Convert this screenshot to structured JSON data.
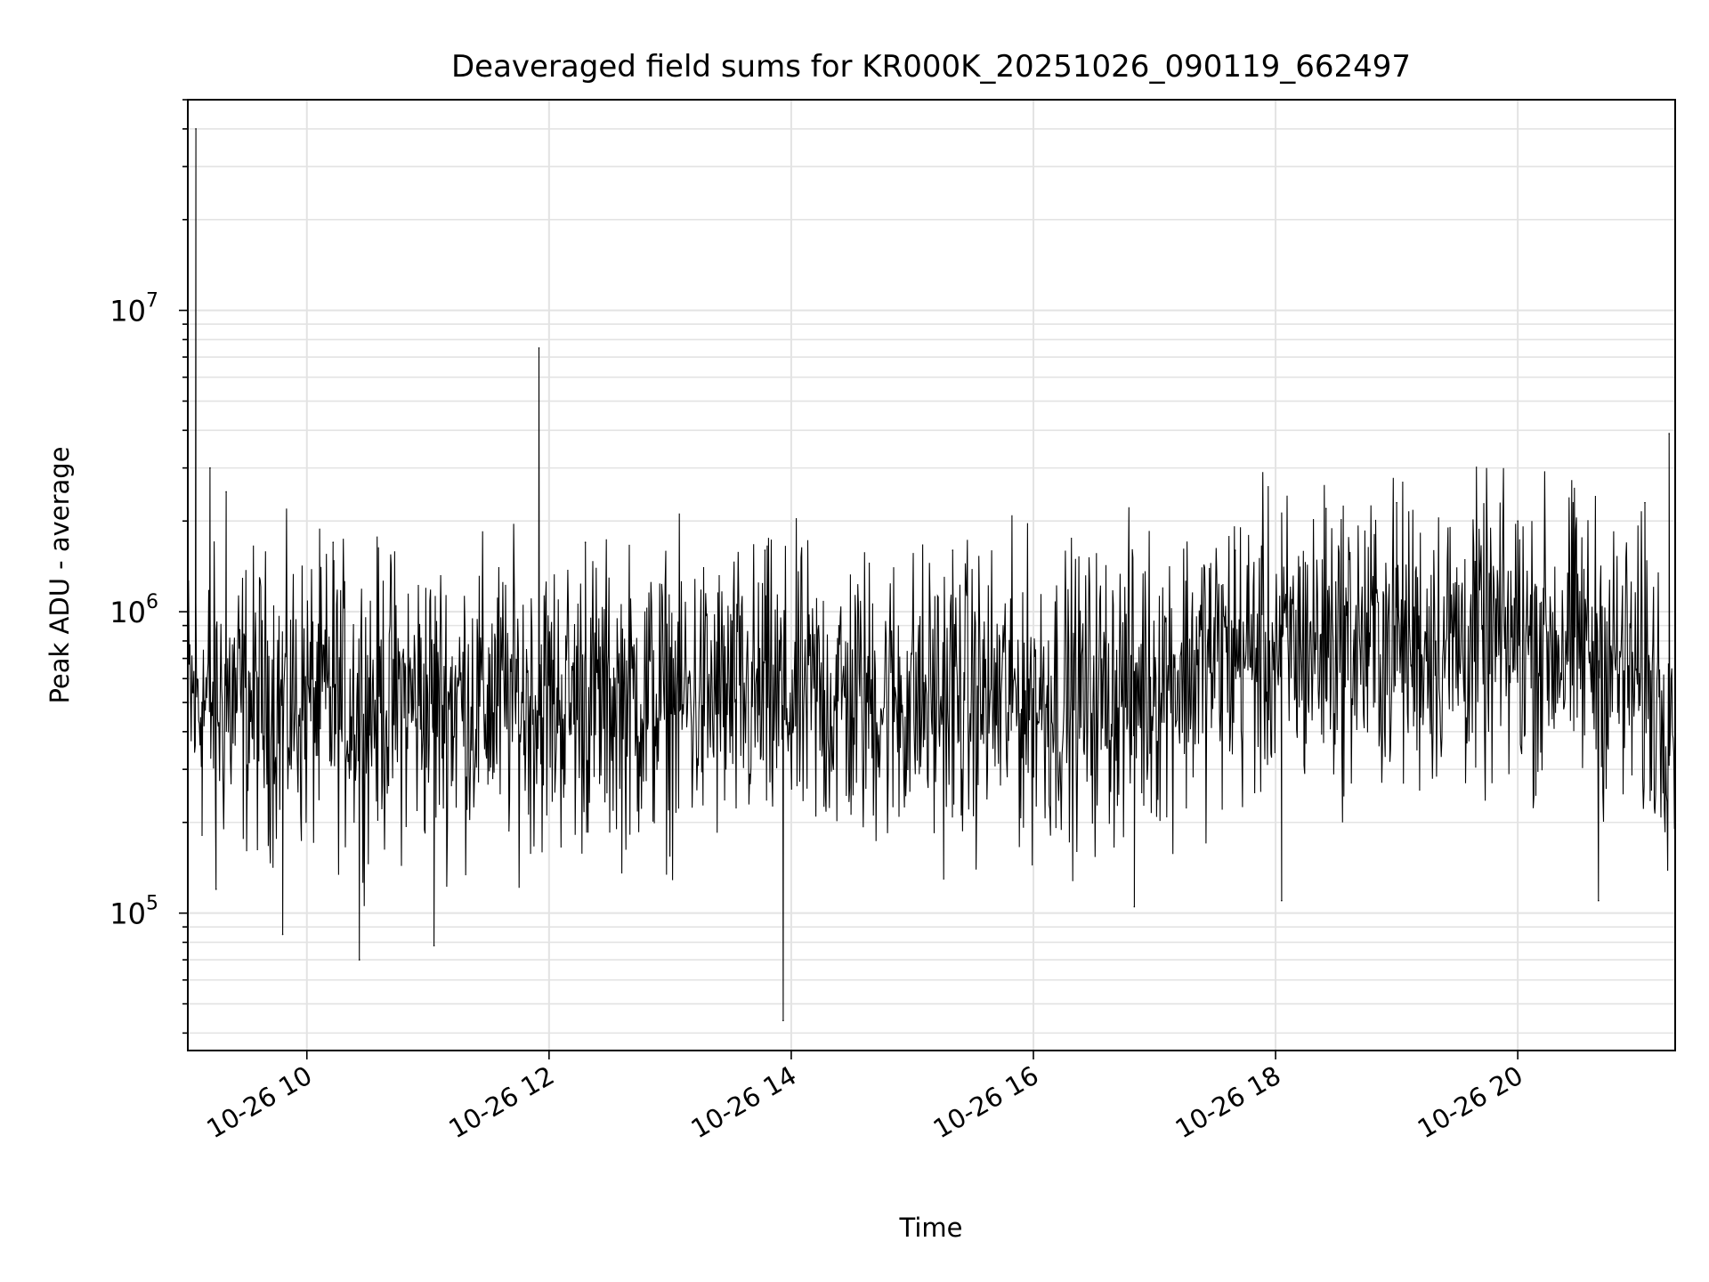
{
  "chart_data": {
    "type": "line",
    "title": "Deaveraged field sums for KR000K_20251026_090119_662497",
    "xlabel": "Time",
    "ylabel": "Peak ADU - average",
    "yscale": "log",
    "ylim": [
      35000,
      50000000
    ],
    "xlim": [
      "2025-10-26 09:01",
      "2025-10-26 21:18"
    ],
    "grid": true,
    "line_color": "#000000",
    "x_ticks": [
      {
        "value": "2025-10-26 10:00",
        "label": "10-26 10"
      },
      {
        "value": "2025-10-26 12:00",
        "label": "10-26 12"
      },
      {
        "value": "2025-10-26 14:00",
        "label": "10-26 14"
      },
      {
        "value": "2025-10-26 16:00",
        "label": "10-26 16"
      },
      {
        "value": "2025-10-26 18:00",
        "label": "10-26 18"
      },
      {
        "value": "2025-10-26 20:00",
        "label": "10-26 20"
      }
    ],
    "y_ticks": [
      {
        "value": 100000,
        "base": "10",
        "exp": "5"
      },
      {
        "value": 1000000,
        "base": "10",
        "exp": "6"
      },
      {
        "value": 10000000,
        "base": "10",
        "exp": "7"
      }
    ],
    "series": [
      {
        "points": [
          [
            "2025-10-26 09:01",
            300000
          ],
          [
            "2025-10-26 09:05",
            40000000
          ],
          [
            "2025-10-26 09:08",
            500000
          ],
          [
            "2025-10-26 09:12",
            3000000
          ],
          [
            "2025-10-26 09:15",
            120000
          ],
          [
            "2025-10-26 09:20",
            2500000
          ],
          [
            "2025-10-26 09:48",
            85000
          ],
          [
            "2025-10-26 10:13",
            1700000
          ],
          [
            "2025-10-26 10:26",
            70000
          ],
          [
            "2025-10-26 11:03",
            78000
          ],
          [
            "2025-10-26 11:55",
            7500000
          ],
          [
            "2025-10-26 12:18",
            1700000
          ],
          [
            "2025-10-26 13:47",
            1600000
          ],
          [
            "2025-10-26 13:56",
            44000
          ],
          [
            "2025-10-26 15:20",
            1600000
          ],
          [
            "2025-10-26 16:50",
            105000
          ],
          [
            "2025-10-26 17:40",
            1600000
          ],
          [
            "2025-10-26 18:03",
            110000
          ],
          [
            "2025-10-26 18:25",
            2200000
          ],
          [
            "2025-10-26 19:00",
            2300000
          ],
          [
            "2025-10-26 20:00",
            2000000
          ],
          [
            "2025-10-26 20:40",
            110000
          ],
          [
            "2025-10-26 21:03",
            2300000
          ],
          [
            "2025-10-26 21:15",
            3900000
          ],
          [
            "2025-10-26 21:18",
            500000
          ]
        ],
        "baseline": [
          [
            "2025-10-26 09:01",
            500000
          ],
          [
            "2025-10-26 16:30",
            520000
          ],
          [
            "2025-10-26 17:30",
            700000
          ],
          [
            "2025-10-26 18:30",
            800000
          ],
          [
            "2025-10-26 20:30",
            800000
          ],
          [
            "2025-10-26 21:18",
            500000
          ]
        ]
      }
    ]
  }
}
